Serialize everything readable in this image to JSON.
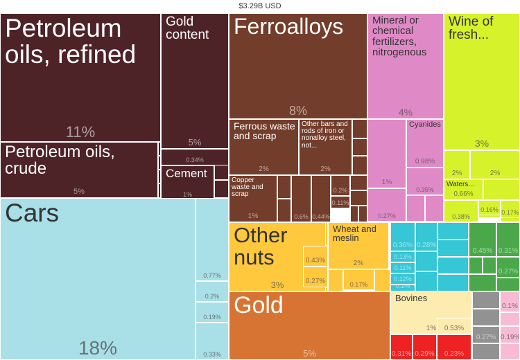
{
  "total_label": "$3.29B USD",
  "colors": {
    "maroon": "#4d2327",
    "brown": "#733d2b",
    "pink": "#e089c7",
    "lime": "#d6f22a",
    "lightblue": "#a9dfe7",
    "yellow": "#ffc83d",
    "orange": "#d87433",
    "teal": "#35c7d6",
    "green": "#4aa84a",
    "cream": "#fdecb0",
    "red": "#ee2222",
    "grey": "#929292",
    "lightpink": "#f7bcd4"
  },
  "chart_data": {
    "type": "treemap",
    "total": "$3.29B USD",
    "tiles": [
      {
        "label": "Petroleum oils, refined",
        "value": 11,
        "share": "11%"
      },
      {
        "label": "Petroleum oils, crude",
        "value": 5,
        "share": "5%"
      },
      {
        "label": "Gold content",
        "value": 5,
        "share": "5%"
      },
      {
        "label": "",
        "value": 0.34,
        "share": "0.34%"
      },
      {
        "label": "Cement",
        "value": 1,
        "share": "1%"
      },
      {
        "label": "Cars",
        "value": 18,
        "share": "18%"
      },
      {
        "label": "",
        "value": 0.77,
        "share": "0.77%"
      },
      {
        "label": "",
        "value": 0.2,
        "share": "0.2%"
      },
      {
        "label": "",
        "value": 0.19,
        "share": "0.19%"
      },
      {
        "label": "",
        "value": 0.33,
        "share": "0.33%"
      },
      {
        "label": "Ferroalloys",
        "value": 8,
        "share": "8%"
      },
      {
        "label": "Ferrous waste and scrap",
        "value": 2,
        "share": "2%"
      },
      {
        "label": "Other bars and rods of iron or nonalloy steel, not...",
        "value": 2,
        "share": "2%"
      },
      {
        "label": "Copper waste and scrap",
        "value": 1,
        "share": "1%"
      },
      {
        "label": "",
        "value": 0.6,
        "share": "0.6%"
      },
      {
        "label": "",
        "value": 0.44,
        "share": "0.44%"
      },
      {
        "label": "",
        "value": 0.2,
        "share": "0.2%"
      },
      {
        "label": "",
        "value": 0.11,
        "share": "0.11%"
      },
      {
        "label": "Mineral or chemical fertilizers, nitrogenous",
        "value": 4,
        "share": "4%"
      },
      {
        "label": "Cyanides",
        "value": 0.98,
        "share": "0.98%"
      },
      {
        "label": "",
        "value": 1,
        "share": "1%"
      },
      {
        "label": "",
        "value": 0.35,
        "share": "0.35%"
      },
      {
        "label": "",
        "value": 0.27,
        "share": "0.27%"
      },
      {
        "label": "Wine of fresh...",
        "value": 3,
        "share": "3%"
      },
      {
        "label": "",
        "value": 2,
        "share": "2%"
      },
      {
        "label": "",
        "value": 2,
        "share": "2%"
      },
      {
        "label": "Waters...",
        "value": 0.66,
        "share": "0.66%"
      },
      {
        "label": "",
        "value": 0.16,
        "share": "0.16%"
      },
      {
        "label": "",
        "value": 0.17,
        "share": "0.17%"
      },
      {
        "label": "",
        "value": 0.38,
        "share": "0.38%"
      },
      {
        "label": "Other nuts",
        "value": 3,
        "share": "3%"
      },
      {
        "label": "",
        "value": 0.43,
        "share": "0.43%"
      },
      {
        "label": "",
        "value": 0.27,
        "share": "0.27%"
      },
      {
        "label": "Wheat and meslin",
        "value": 2,
        "share": "2%"
      },
      {
        "label": "",
        "value": 0.17,
        "share": "0.17%"
      },
      {
        "label": "Gold",
        "value": 5,
        "share": "5%"
      },
      {
        "label": "",
        "value": 0.36,
        "share": "0.36%"
      },
      {
        "label": "",
        "value": 0.28,
        "share": "0.28%"
      },
      {
        "label": "",
        "value": 0.13,
        "share": "0.13%"
      },
      {
        "label": "",
        "value": 0.11,
        "share": "0.11%"
      },
      {
        "label": "",
        "value": 0.12,
        "share": "0.12%"
      },
      {
        "label": "",
        "value": 0.1,
        "share": "0.1%"
      },
      {
        "label": "",
        "value": 0.45,
        "share": "0.45%"
      },
      {
        "label": "",
        "value": 0.31,
        "share": "0.31%"
      },
      {
        "label": "",
        "value": 0.27,
        "share": "0.27%"
      },
      {
        "label": "Bovines",
        "value": 1,
        "share": "1%"
      },
      {
        "label": "",
        "value": 0.53,
        "share": "0.53%"
      },
      {
        "label": "",
        "value": 0.31,
        "share": "0.31%"
      },
      {
        "label": "",
        "value": 0.29,
        "share": "0.29%"
      },
      {
        "label": "",
        "value": 0.23,
        "share": "0.23%"
      },
      {
        "label": "",
        "value": 0.27,
        "share": "0.27%"
      },
      {
        "label": "",
        "value": 0.1,
        "share": "0.1%"
      },
      {
        "label": "",
        "value": 0.19,
        "share": "0.19%"
      }
    ]
  }
}
